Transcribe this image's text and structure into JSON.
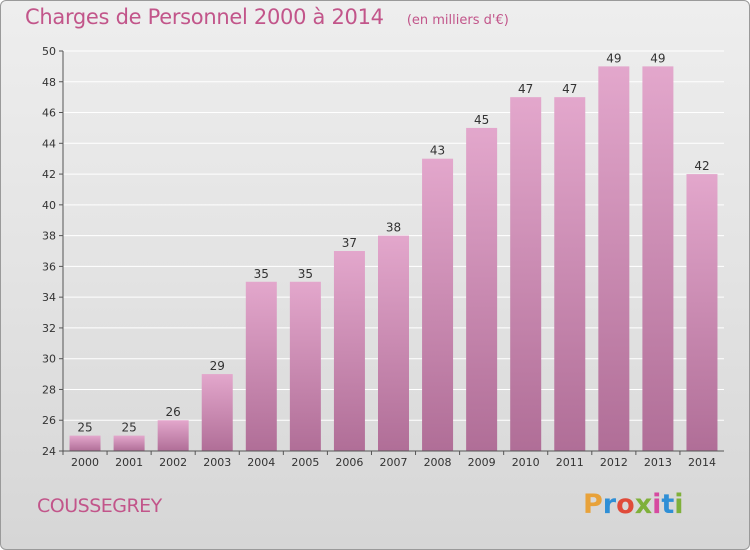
{
  "header": {
    "title": "Charges de Personnel 2000 à 2014",
    "subtitle": "(en milliers d'€)"
  },
  "footer": {
    "commune": "COUSSEGREY",
    "brand": "Proxiti",
    "brand_colors": [
      "#e8a23a",
      "#2f8fd6",
      "#e04b3a",
      "#7fb03a",
      "#d64aa0",
      "#2f8fd6",
      "#7fb03a"
    ]
  },
  "colors": {
    "title": "#c2558a",
    "bar_top": "#e3a7cc",
    "bar_bottom": "#b06e97",
    "axis": "#555555",
    "grid": "#ffffff"
  },
  "chart_data": {
    "type": "bar",
    "title": "Charges de Personnel 2000 à 2014",
    "subtitle": "(en milliers d'€)",
    "categories": [
      "2000",
      "2001",
      "2002",
      "2003",
      "2004",
      "2005",
      "2006",
      "2007",
      "2008",
      "2009",
      "2010",
      "2011",
      "2012",
      "2013",
      "2014"
    ],
    "values": [
      25,
      25,
      26,
      29,
      35,
      35,
      37,
      38,
      43,
      45,
      47,
      47,
      49,
      49,
      42
    ],
    "xlabel": "",
    "ylabel": "",
    "ylim": [
      24,
      50
    ],
    "yticks": [
      24,
      26,
      28,
      30,
      32,
      34,
      36,
      38,
      40,
      42,
      44,
      46,
      48,
      50
    ],
    "grid": true,
    "data_labels": true
  }
}
